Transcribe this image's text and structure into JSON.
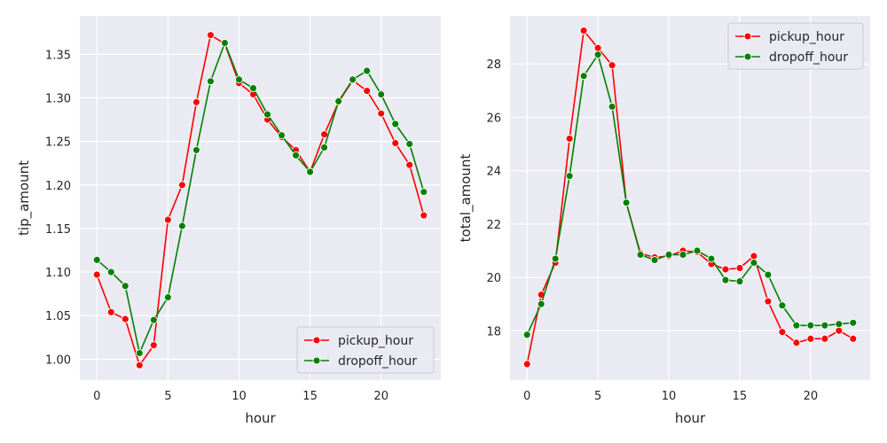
{
  "chart_data": [
    {
      "type": "line",
      "x": [
        0,
        1,
        2,
        3,
        4,
        5,
        6,
        7,
        8,
        9,
        10,
        11,
        12,
        13,
        14,
        15,
        16,
        17,
        18,
        19,
        20,
        21,
        22,
        23
      ],
      "xlabel": "hour",
      "ylabel": "tip_amount",
      "xlim": [
        -1.2,
        24.2
      ],
      "ylim": [
        0.976,
        1.394
      ],
      "xticks": [
        0,
        5,
        10,
        15,
        20
      ],
      "yticks": [
        1.0,
        1.05,
        1.1,
        1.15,
        1.2,
        1.25,
        1.3,
        1.35
      ],
      "ytick_labels": [
        "1.00",
        "1.05",
        "1.10",
        "1.15",
        "1.20",
        "1.25",
        "1.30",
        "1.35"
      ],
      "grid": true,
      "legend_position": "bottom-right",
      "series": [
        {
          "name": "pickup_hour",
          "color": "#ff0000",
          "values": [
            1.097,
            1.054,
            1.046,
            0.993,
            1.016,
            1.16,
            1.2,
            1.295,
            1.372,
            1.362,
            1.317,
            1.304,
            1.275,
            1.255,
            1.24,
            1.215,
            1.258,
            1.295,
            1.32,
            1.308,
            1.282,
            1.248,
            1.223,
            1.165
          ]
        },
        {
          "name": "dropoff_hour",
          "color": "#008000",
          "values": [
            1.114,
            1.1,
            1.084,
            1.007,
            1.045,
            1.071,
            1.153,
            1.24,
            1.319,
            1.363,
            1.321,
            1.311,
            1.281,
            1.257,
            1.234,
            1.215,
            1.243,
            1.296,
            1.321,
            1.331,
            1.304,
            1.27,
            1.247,
            1.192
          ]
        }
      ]
    },
    {
      "type": "line",
      "x": [
        0,
        1,
        2,
        3,
        4,
        5,
        6,
        7,
        8,
        9,
        10,
        11,
        12,
        13,
        14,
        15,
        16,
        17,
        18,
        19,
        20,
        21,
        22,
        23
      ],
      "xlabel": "hour",
      "ylabel": "total_amount",
      "xlim": [
        -1.2,
        24.2
      ],
      "ylim": [
        16.15,
        29.8
      ],
      "xticks": [
        0,
        5,
        10,
        15,
        20
      ],
      "yticks": [
        18,
        20,
        22,
        24,
        26,
        28
      ],
      "ytick_labels": [
        "18",
        "20",
        "22",
        "24",
        "26",
        "28"
      ],
      "grid": true,
      "legend_position": "top-right",
      "series": [
        {
          "name": "pickup_hour",
          "color": "#ff0000",
          "values": [
            16.75,
            19.35,
            20.55,
            25.2,
            29.25,
            28.6,
            27.95,
            22.8,
            20.9,
            20.75,
            20.8,
            21.0,
            20.95,
            20.5,
            20.3,
            20.35,
            20.8,
            19.1,
            17.95,
            17.55,
            17.7,
            17.7,
            18.0,
            17.7
          ]
        },
        {
          "name": "dropoff_hour",
          "color": "#008000",
          "values": [
            17.85,
            19.0,
            20.7,
            23.8,
            27.55,
            28.35,
            26.4,
            22.8,
            20.85,
            20.65,
            20.85,
            20.85,
            21.0,
            20.7,
            19.9,
            19.85,
            20.55,
            20.1,
            18.95,
            18.2,
            18.2,
            18.2,
            18.25,
            18.3
          ]
        }
      ]
    }
  ]
}
